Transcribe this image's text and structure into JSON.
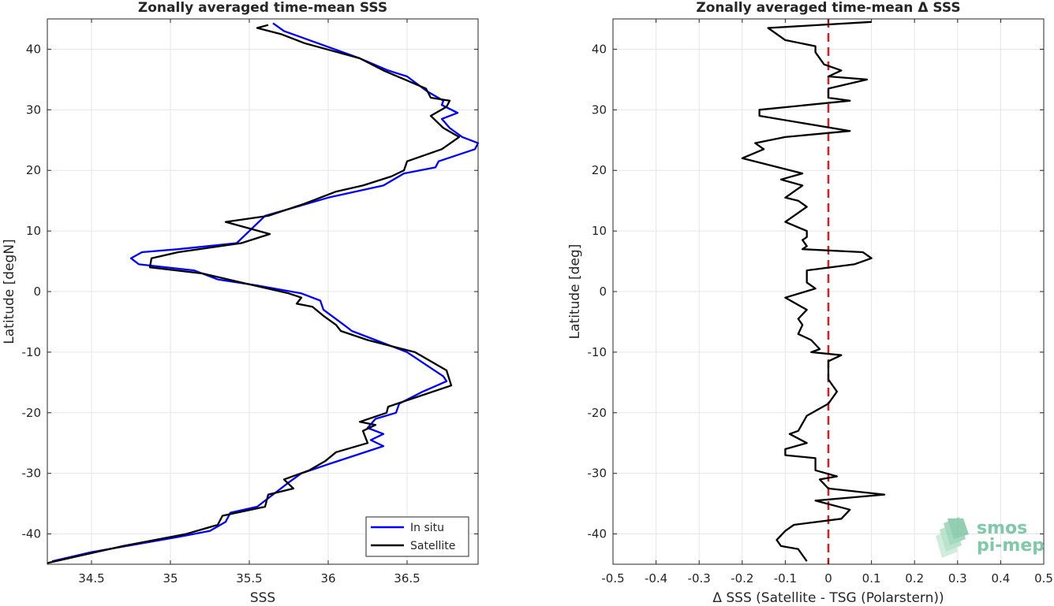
{
  "chart_data": [
    {
      "type": "line",
      "title": "Zonally averaged time-mean SSS",
      "xlabel": "SSS",
      "ylabel": "Latitude [degN]",
      "xlim": [
        34.22,
        36.95
      ],
      "ylim": [
        -45,
        45
      ],
      "xticks": [
        "34.5",
        "35",
        "35.5",
        "36",
        "36.5"
      ],
      "xtick_values": [
        34.5,
        35.0,
        35.5,
        36.0,
        36.5
      ],
      "yticks": [
        "-40",
        "-30",
        "-20",
        "-10",
        "0",
        "10",
        "20",
        "30",
        "40"
      ],
      "ytick_values": [
        -40,
        -30,
        -20,
        -10,
        0,
        10,
        20,
        30,
        40
      ],
      "grid": true,
      "legend_position": "bottom-right",
      "series": [
        {
          "name": "In situ",
          "color": "#0000ff",
          "points": [
            [
              35.65,
              44.3
            ],
            [
              35.72,
              43.0
            ],
            [
              35.88,
              41.5
            ],
            [
              36.2,
              38.5
            ],
            [
              36.38,
              36.5
            ],
            [
              36.5,
              35.5
            ],
            [
              36.63,
              33.0
            ],
            [
              36.73,
              31.5
            ],
            [
              36.72,
              30.8
            ],
            [
              36.82,
              29.5
            ],
            [
              36.72,
              28.5
            ],
            [
              36.77,
              27.0
            ],
            [
              36.85,
              25.5
            ],
            [
              36.95,
              24.5
            ],
            [
              36.93,
              23.5
            ],
            [
              36.7,
              21.5
            ],
            [
              36.68,
              20.5
            ],
            [
              36.48,
              19.5
            ],
            [
              36.35,
              17.5
            ],
            [
              36.0,
              15.5
            ],
            [
              35.8,
              14.0
            ],
            [
              35.6,
              12.5
            ],
            [
              35.52,
              10.5
            ],
            [
              35.42,
              8.0
            ],
            [
              35.05,
              7.0
            ],
            [
              34.82,
              6.5
            ],
            [
              34.75,
              5.5
            ],
            [
              34.8,
              4.5
            ],
            [
              35.15,
              3.5
            ],
            [
              35.3,
              2.0
            ],
            [
              35.55,
              1.0
            ],
            [
              35.83,
              -0.3
            ],
            [
              35.95,
              -1.5
            ],
            [
              35.97,
              -3.0
            ],
            [
              36.1,
              -5.5
            ],
            [
              36.15,
              -6.5
            ],
            [
              36.3,
              -8.0
            ],
            [
              36.5,
              -10.0
            ],
            [
              36.73,
              -14.0
            ],
            [
              36.75,
              -14.8
            ],
            [
              36.6,
              -16.5
            ],
            [
              36.45,
              -18.5
            ],
            [
              36.43,
              -20.0
            ],
            [
              36.3,
              -21.0
            ],
            [
              36.25,
              -22.5
            ],
            [
              36.35,
              -23.5
            ],
            [
              36.27,
              -24.5
            ],
            [
              36.35,
              -25.5
            ],
            [
              36.0,
              -28.5
            ],
            [
              35.83,
              -30.0
            ],
            [
              35.75,
              -31.5
            ],
            [
              35.65,
              -33.5
            ],
            [
              35.55,
              -35.5
            ],
            [
              35.38,
              -36.5
            ],
            [
              35.35,
              -38.0
            ],
            [
              35.25,
              -39.5
            ],
            [
              35.05,
              -40.5
            ],
            [
              34.5,
              -43.0
            ],
            [
              34.25,
              -44.5
            ]
          ]
        },
        {
          "name": "Satellite",
          "color": "#000000",
          "points": [
            [
              35.62,
              44.0
            ],
            [
              35.55,
              43.5
            ],
            [
              35.7,
              42.5
            ],
            [
              35.85,
              41.0
            ],
            [
              36.2,
              38.5
            ],
            [
              36.35,
              36.5
            ],
            [
              36.62,
              33.5
            ],
            [
              36.65,
              32.0
            ],
            [
              36.77,
              31.5
            ],
            [
              36.75,
              30.5
            ],
            [
              36.65,
              29.0
            ],
            [
              36.73,
              27.0
            ],
            [
              36.83,
              25.5
            ],
            [
              36.72,
              23.5
            ],
            [
              36.5,
              21.5
            ],
            [
              36.48,
              20.0
            ],
            [
              36.4,
              19.0
            ],
            [
              36.22,
              17.5
            ],
            [
              36.05,
              16.5
            ],
            [
              35.85,
              14.5
            ],
            [
              35.62,
              12.5
            ],
            [
              35.35,
              11.5
            ],
            [
              35.63,
              9.5
            ],
            [
              35.45,
              8.0
            ],
            [
              35.05,
              6.5
            ],
            [
              34.88,
              5.5
            ],
            [
              34.87,
              4.0
            ],
            [
              35.2,
              3.0
            ],
            [
              35.45,
              1.5
            ],
            [
              35.75,
              -0.3
            ],
            [
              35.83,
              -1.0
            ],
            [
              35.8,
              -2.0
            ],
            [
              35.9,
              -2.5
            ],
            [
              35.97,
              -4.0
            ],
            [
              36.05,
              -5.5
            ],
            [
              36.08,
              -6.5
            ],
            [
              36.25,
              -8.0
            ],
            [
              36.55,
              -10.0
            ],
            [
              36.75,
              -13.0
            ],
            [
              36.78,
              -15.5
            ],
            [
              36.55,
              -17.5
            ],
            [
              36.38,
              -19.0
            ],
            [
              36.37,
              -20.0
            ],
            [
              36.2,
              -21.5
            ],
            [
              36.3,
              -22.0
            ],
            [
              36.22,
              -23.0
            ],
            [
              36.25,
              -25.0
            ],
            [
              36.05,
              -26.5
            ],
            [
              35.98,
              -28.0
            ],
            [
              35.88,
              -29.5
            ],
            [
              35.72,
              -31.0
            ],
            [
              35.78,
              -32.5
            ],
            [
              35.62,
              -33.5
            ],
            [
              35.6,
              -35.5
            ],
            [
              35.33,
              -37.0
            ],
            [
              35.3,
              -38.5
            ],
            [
              35.1,
              -40.0
            ],
            [
              34.7,
              -42.0
            ],
            [
              34.22,
              -44.8
            ]
          ]
        }
      ]
    },
    {
      "type": "line",
      "title": "Zonally averaged time-mean Δ SSS",
      "xlabel": "Δ SSS (Satellite - TSG (Polarstern))",
      "ylabel": "Latitude [deg]",
      "xlim": [
        -0.5,
        0.5
      ],
      "ylim": [
        -45,
        45
      ],
      "xticks": [
        "-0.5",
        "-0.4",
        "-0.3",
        "-0.2",
        "-0.1",
        "0",
        "0.1",
        "0.2",
        "0.3",
        "0.4",
        "0.5"
      ],
      "xtick_values": [
        -0.5,
        -0.4,
        -0.3,
        -0.2,
        -0.1,
        0,
        0.1,
        0.2,
        0.3,
        0.4,
        0.5
      ],
      "yticks": [
        "-40",
        "-30",
        "-20",
        "-10",
        "0",
        "10",
        "20",
        "30",
        "40"
      ],
      "ytick_values": [
        -40,
        -30,
        -20,
        -10,
        0,
        10,
        20,
        30,
        40
      ],
      "grid": true,
      "reference_line": {
        "x": 0,
        "color": "#e31a1c",
        "style": "dashed"
      },
      "series": [
        {
          "name": "",
          "color": "#000000",
          "points": [
            [
              0.1,
              44.5
            ],
            [
              -0.14,
              43.5
            ],
            [
              -0.1,
              41.5
            ],
            [
              -0.03,
              40.5
            ],
            [
              -0.03,
              39.5
            ],
            [
              -0.01,
              37.5
            ],
            [
              0.03,
              36.5
            ],
            [
              0.0,
              35.5
            ],
            [
              0.09,
              35.0
            ],
            [
              0.0,
              33.5
            ],
            [
              0.0,
              32.0
            ],
            [
              0.05,
              31.5
            ],
            [
              -0.16,
              30.0
            ],
            [
              -0.16,
              29.0
            ],
            [
              0.05,
              26.5
            ],
            [
              -0.1,
              25.5
            ],
            [
              -0.17,
              24.5
            ],
            [
              -0.15,
              23.5
            ],
            [
              -0.2,
              22.0
            ],
            [
              -0.06,
              19.5
            ],
            [
              -0.11,
              18.5
            ],
            [
              -0.06,
              17.5
            ],
            [
              -0.1,
              15.5
            ],
            [
              -0.07,
              15.0
            ],
            [
              -0.05,
              14.0
            ],
            [
              -0.1,
              11.5
            ],
            [
              -0.05,
              10.0
            ],
            [
              -0.05,
              9.0
            ],
            [
              -0.06,
              8.5
            ],
            [
              -0.05,
              7.5
            ],
            [
              -0.06,
              7.0
            ],
            [
              0.08,
              6.5
            ],
            [
              0.1,
              5.5
            ],
            [
              0.06,
              4.5
            ],
            [
              -0.05,
              3.5
            ],
            [
              -0.05,
              2.5
            ],
            [
              -0.05,
              1.5
            ],
            [
              -0.03,
              0.5
            ],
            [
              -0.1,
              -1.0
            ],
            [
              -0.05,
              -3.0
            ],
            [
              -0.07,
              -4.5
            ],
            [
              -0.06,
              -5.5
            ],
            [
              -0.07,
              -7.0
            ],
            [
              -0.04,
              -8.0
            ],
            [
              -0.02,
              -9.5
            ],
            [
              -0.04,
              -10.0
            ],
            [
              0.03,
              -10.5
            ],
            [
              0.0,
              -11.5
            ],
            [
              0.0,
              -13.0
            ],
            [
              0.0,
              -14.5
            ],
            [
              0.02,
              -16.5
            ],
            [
              0.0,
              -18.5
            ],
            [
              -0.05,
              -20.5
            ],
            [
              -0.07,
              -23.0
            ],
            [
              -0.09,
              -23.5
            ],
            [
              -0.05,
              -25.0
            ],
            [
              -0.1,
              -26.0
            ],
            [
              -0.1,
              -27.0
            ],
            [
              -0.03,
              -27.5
            ],
            [
              -0.03,
              -29.5
            ],
            [
              0.02,
              -30.5
            ],
            [
              -0.02,
              -31.0
            ],
            [
              0.0,
              -32.5
            ],
            [
              0.13,
              -33.5
            ],
            [
              -0.03,
              -34.5
            ],
            [
              0.05,
              -36.0
            ],
            [
              0.03,
              -37.5
            ],
            [
              -0.08,
              -38.5
            ],
            [
              -0.1,
              -39.5
            ],
            [
              -0.12,
              -41.0
            ],
            [
              -0.11,
              -42.0
            ],
            [
              -0.07,
              -42.5
            ],
            [
              -0.06,
              -43.5
            ],
            [
              -0.05,
              -44.5
            ]
          ]
        }
      ]
    }
  ],
  "logo": {
    "line1": "smos",
    "line2": "pi-mep"
  }
}
